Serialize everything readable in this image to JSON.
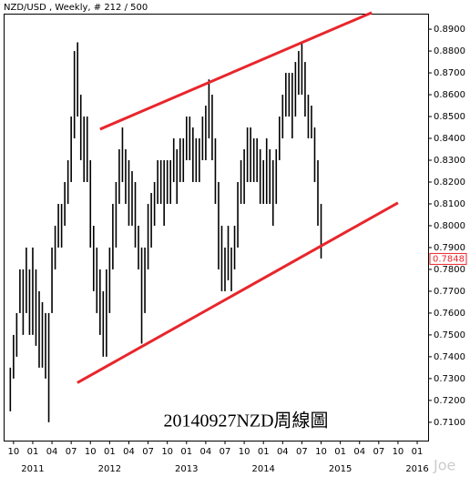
{
  "chart_data": {
    "type": "ohlc-range",
    "header": "NZD/USD , Weekly, # 212 / 500",
    "caption": "20140927NZD周線圖",
    "watermark": "Joe",
    "color": "#000000",
    "trend_color": "#e8262c",
    "x": [
      -3.5,
      -3,
      -2.5,
      -2,
      -1.5,
      -1,
      -0.5,
      0,
      0.5,
      1,
      1.5,
      2,
      2.5,
      3,
      3.5,
      4,
      4.5,
      5,
      5.5,
      6,
      6.5,
      7,
      7.5,
      8,
      8.5,
      9,
      9.5,
      10,
      10.5,
      11,
      11.5,
      12,
      12.5,
      13,
      13.5,
      14,
      14.5,
      15,
      15.5,
      16,
      16.5,
      17,
      17.5,
      18,
      18.5,
      19,
      19.5,
      20,
      20.5,
      21,
      21.5,
      22,
      22.5,
      23,
      23.5,
      24,
      24.5,
      25,
      25.5,
      26,
      26.5,
      27,
      27.5,
      28,
      28.5,
      29,
      29.5,
      30,
      30.5,
      31,
      31.5,
      32,
      32.5,
      33,
      33.5,
      34,
      34.5,
      35,
      35.5,
      36,
      36.5,
      37,
      37.5,
      38,
      38.5,
      39,
      39.5,
      40,
      40.5,
      41,
      41.5,
      42,
      42.5,
      43,
      43.5,
      44,
      44.5,
      45
    ],
    "high": [
      0.735,
      0.75,
      0.76,
      0.78,
      0.78,
      0.79,
      0.78,
      0.79,
      0.78,
      0.77,
      0.765,
      0.76,
      0.76,
      0.79,
      0.8,
      0.81,
      0.81,
      0.82,
      0.83,
      0.85,
      0.88,
      0.884,
      0.86,
      0.85,
      0.85,
      0.83,
      0.8,
      0.79,
      0.78,
      0.77,
      0.78,
      0.79,
      0.81,
      0.82,
      0.835,
      0.845,
      0.835,
      0.83,
      0.825,
      0.82,
      0.8,
      0.79,
      0.79,
      0.81,
      0.815,
      0.82,
      0.83,
      0.83,
      0.83,
      0.83,
      0.83,
      0.84,
      0.835,
      0.84,
      0.84,
      0.85,
      0.85,
      0.845,
      0.84,
      0.84,
      0.85,
      0.855,
      0.867,
      0.86,
      0.84,
      0.82,
      0.8,
      0.79,
      0.8,
      0.79,
      0.8,
      0.82,
      0.83,
      0.835,
      0.845,
      0.845,
      0.84,
      0.84,
      0.835,
      0.83,
      0.84,
      0.835,
      0.83,
      0.835,
      0.85,
      0.86,
      0.87,
      0.87,
      0.87,
      0.875,
      0.88,
      0.884,
      0.875,
      0.86,
      0.855,
      0.845,
      0.83,
      0.81
    ],
    "low": [
      0.715,
      0.73,
      0.74,
      0.76,
      0.75,
      0.76,
      0.75,
      0.75,
      0.745,
      0.735,
      0.735,
      0.73,
      0.71,
      0.76,
      0.78,
      0.79,
      0.79,
      0.8,
      0.81,
      0.82,
      0.84,
      0.85,
      0.83,
      0.82,
      0.82,
      0.79,
      0.77,
      0.76,
      0.75,
      0.74,
      0.74,
      0.76,
      0.78,
      0.79,
      0.81,
      0.82,
      0.81,
      0.8,
      0.8,
      0.79,
      0.78,
      0.746,
      0.76,
      0.78,
      0.79,
      0.8,
      0.81,
      0.81,
      0.8,
      0.81,
      0.81,
      0.82,
      0.81,
      0.82,
      0.82,
      0.83,
      0.83,
      0.82,
      0.82,
      0.82,
      0.83,
      0.83,
      0.84,
      0.83,
      0.81,
      0.78,
      0.77,
      0.77,
      0.775,
      0.77,
      0.78,
      0.79,
      0.81,
      0.81,
      0.82,
      0.82,
      0.82,
      0.82,
      0.81,
      0.81,
      0.81,
      0.81,
      0.8,
      0.81,
      0.83,
      0.84,
      0.85,
      0.85,
      0.84,
      0.85,
      0.86,
      0.86,
      0.85,
      0.84,
      0.84,
      0.82,
      0.8,
      0.785
    ],
    "last_value": 0.7848,
    "trendlines": [
      {
        "x": [
          10.5,
          52.9
        ],
        "y": [
          0.8442,
          0.8976
        ]
      },
      {
        "x": [
          6.96,
          57.0
        ],
        "y": [
          0.7281,
          0.8105
        ]
      }
    ],
    "xlim": [
      -4.4,
      61.7
    ],
    "ylim": [
      0.7016,
      0.8967
    ],
    "yticks": [
      {
        "value": 0.71,
        "label": "0.7100"
      },
      {
        "value": 0.72,
        "label": "0.7200"
      },
      {
        "value": 0.73,
        "label": "0.7300"
      },
      {
        "value": 0.74,
        "label": "0.7400"
      },
      {
        "value": 0.75,
        "label": "0.7500"
      },
      {
        "value": 0.76,
        "label": "0.7600"
      },
      {
        "value": 0.77,
        "label": "0.7700"
      },
      {
        "value": 0.78,
        "label": "0.7800"
      },
      {
        "value": 0.79,
        "label": "0.7900"
      },
      {
        "value": 0.8,
        "label": "0.8000"
      },
      {
        "value": 0.81,
        "label": "0.8100"
      },
      {
        "value": 0.82,
        "label": "0.8200"
      },
      {
        "value": 0.83,
        "label": "0.8300"
      },
      {
        "value": 0.84,
        "label": "0.8400"
      },
      {
        "value": 0.85,
        "label": "0.8500"
      },
      {
        "value": 0.86,
        "label": "0.8600"
      },
      {
        "value": 0.87,
        "label": "0.8700"
      },
      {
        "value": 0.88,
        "label": "0.8800"
      },
      {
        "value": 0.89,
        "label": "0.8900"
      }
    ],
    "xticks": [
      {
        "value": -3,
        "label": "10"
      },
      {
        "value": 0,
        "label": "01"
      },
      {
        "value": 3,
        "label": "04"
      },
      {
        "value": 6,
        "label": "07"
      },
      {
        "value": 9,
        "label": "10"
      },
      {
        "value": 12,
        "label": "01"
      },
      {
        "value": 15,
        "label": "04"
      },
      {
        "value": 18,
        "label": "07"
      },
      {
        "value": 21,
        "label": "10"
      },
      {
        "value": 24,
        "label": "01"
      },
      {
        "value": 27,
        "label": "04"
      },
      {
        "value": 30,
        "label": "07"
      },
      {
        "value": 33,
        "label": "10"
      },
      {
        "value": 36,
        "label": "01"
      },
      {
        "value": 39,
        "label": "04"
      },
      {
        "value": 42,
        "label": "07"
      },
      {
        "value": 45,
        "label": "10"
      },
      {
        "value": 48,
        "label": "01"
      },
      {
        "value": 51,
        "label": "04"
      },
      {
        "value": 54,
        "label": "07"
      },
      {
        "value": 57,
        "label": "10"
      },
      {
        "value": 60,
        "label": "01"
      }
    ],
    "year_ticks": [
      {
        "value": 0,
        "label": "2011"
      },
      {
        "value": 12,
        "label": "2012"
      },
      {
        "value": 24,
        "label": "2013"
      },
      {
        "value": 36,
        "label": "2014"
      },
      {
        "value": 48,
        "label": "2015"
      },
      {
        "value": 60,
        "label": "2016"
      }
    ]
  }
}
